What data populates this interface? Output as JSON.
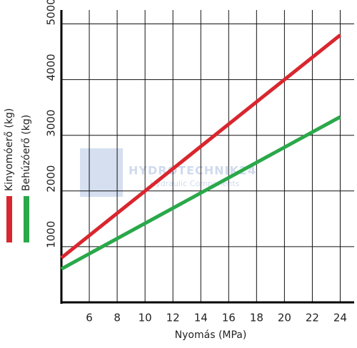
{
  "chart_data": {
    "type": "line",
    "x_label": "Nyomás (MPa)",
    "x": [
      4,
      24
    ],
    "series": [
      {
        "name": "Kinyomóerő (kg)",
        "color": "#d9262e",
        "values": [
          800,
          4800
        ]
      },
      {
        "name": "Behúzóerő (kg)",
        "color": "#2aa84a",
        "values": [
          600,
          3330
        ]
      }
    ],
    "xlim": [
      4,
      25
    ],
    "xticks": [
      6,
      8,
      10,
      12,
      14,
      16,
      18,
      20,
      22,
      24
    ],
    "ylim": [
      0,
      5250
    ],
    "yticks": [
      1000,
      2000,
      3000,
      4000,
      5000
    ],
    "grid": true,
    "watermark": {
      "title": "HYDROTECHNIK24",
      "subtitle": "Hydraulic Components"
    }
  }
}
